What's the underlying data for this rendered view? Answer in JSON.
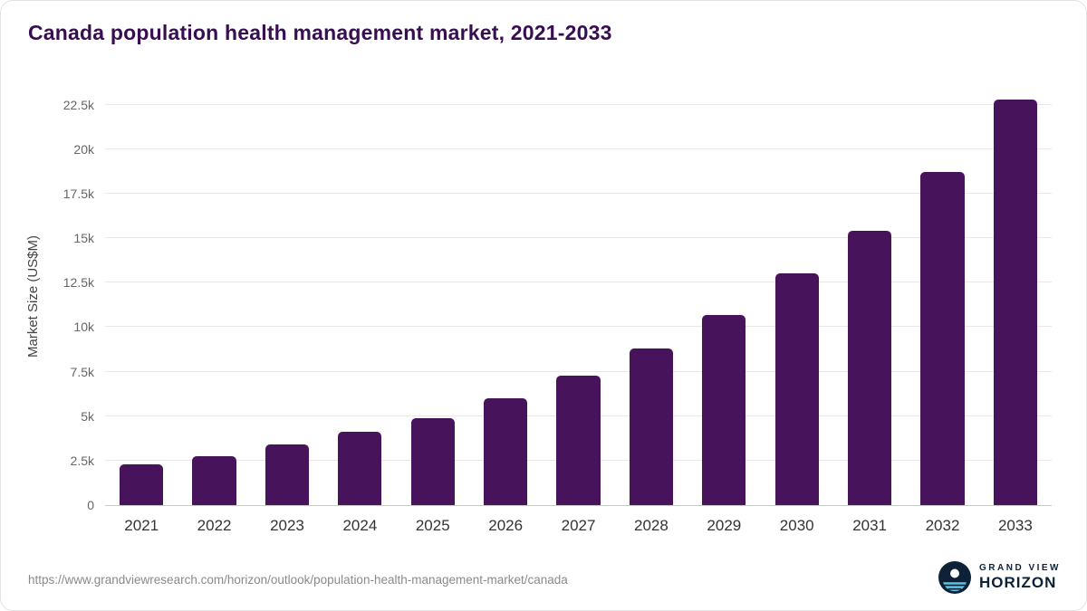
{
  "chart_data": {
    "type": "bar",
    "title": "Canada population health management market, 2021-2033",
    "ylabel": "Market Size (US$M)",
    "xlabel": "",
    "categories": [
      "2021",
      "2022",
      "2023",
      "2024",
      "2025",
      "2026",
      "2027",
      "2028",
      "2029",
      "2030",
      "2031",
      "2032",
      "2033"
    ],
    "values": [
      2300,
      2750,
      3400,
      4100,
      4900,
      6000,
      7250,
      8800,
      10700,
      13000,
      15400,
      18700,
      22800
    ],
    "ylim": [
      0,
      23500
    ],
    "yticks": [
      0,
      2500,
      5000,
      7500,
      10000,
      12500,
      15000,
      17500,
      20000,
      22500
    ],
    "ytick_labels": [
      "0",
      "2.5k",
      "5k",
      "7.5k",
      "10k",
      "12.5k",
      "15k",
      "17.5k",
      "20k",
      "22.5k"
    ],
    "grid": "horizontal",
    "legend": "none"
  },
  "footer": {
    "source_url": "https://www.grandviewresearch.com/horizon/outlook/population-health-management-market/canada",
    "brand_line1": "GRAND VIEW",
    "brand_line2": "HORIZON"
  },
  "colors": {
    "bar": "#47135a",
    "title": "#380d52",
    "grid": "#e8e8e8",
    "axis": "#c9c9c9",
    "logo_navy": "#0d2137",
    "logo_sky": "#56c5e8"
  }
}
